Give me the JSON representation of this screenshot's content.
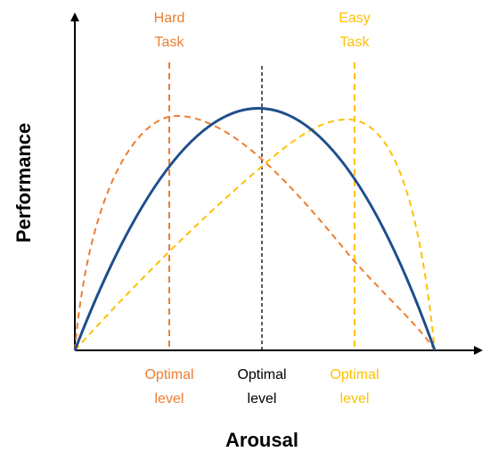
{
  "axes": {
    "x_title": "Arousal",
    "y_title": "Performance"
  },
  "annotations": {
    "hard_task": {
      "line1": "Hard",
      "line2": "Task"
    },
    "easy_task": {
      "line1": "Easy",
      "line2": "Task"
    },
    "optimal_hard": {
      "line1": "Optimal",
      "line2": "level"
    },
    "optimal_mid": {
      "line1": "Optimal",
      "line2": "level"
    },
    "optimal_easy": {
      "line1": "Optimal",
      "line2": "level"
    }
  },
  "colors": {
    "hard": "#ED7D31",
    "easy": "#FFC000",
    "mid": "#1F4E8C",
    "axis": "#000000",
    "guide": "#000000"
  },
  "curves": [
    {
      "id": "hard",
      "style": "dashed",
      "peak_position": "left of center"
    },
    {
      "id": "mid",
      "style": "solid",
      "peak_position": "center"
    },
    {
      "id": "easy",
      "style": "dashed",
      "peak_position": "right of center"
    }
  ]
}
